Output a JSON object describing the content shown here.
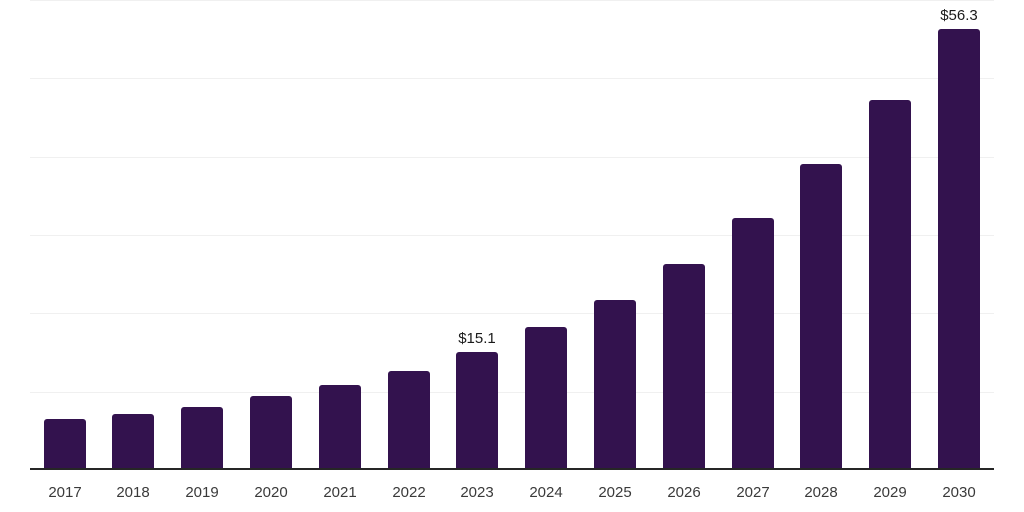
{
  "chart_data": {
    "type": "bar",
    "title": "",
    "xlabel": "",
    "ylabel": "",
    "categories": [
      "2017",
      "2018",
      "2019",
      "2020",
      "2021",
      "2022",
      "2023",
      "2024",
      "2025",
      "2026",
      "2027",
      "2028",
      "2029",
      "2030"
    ],
    "values": [
      6.5,
      7.1,
      8.1,
      9.4,
      10.9,
      12.7,
      15.1,
      18.2,
      21.7,
      26.3,
      32.2,
      39.0,
      47.2,
      56.3
    ],
    "data_labels": {
      "2023": "$15.1",
      "2030": "$56.3"
    },
    "ylim": [
      0,
      60
    ],
    "grid_step": 10,
    "grid": true,
    "legend": false,
    "colors": {
      "bar": "#33124E",
      "gridline": "#f0f0f0",
      "axis": "#262626",
      "tick_text": "#3a3a3a",
      "label_text": "#1a1a1a",
      "background": "#ffffff"
    }
  }
}
